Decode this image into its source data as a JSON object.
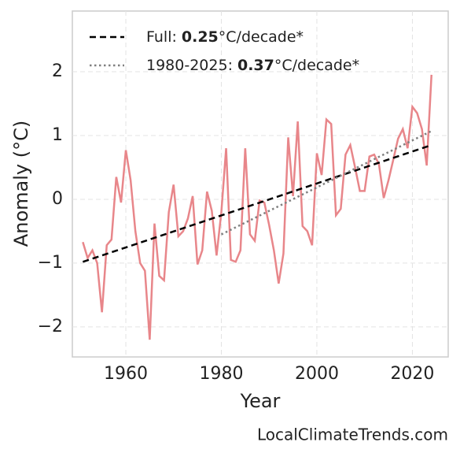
{
  "chart_data": {
    "type": "line",
    "xlabel": "Year",
    "ylabel": "Anomaly (°C)",
    "xlim": [
      1948.8,
      2027.5
    ],
    "ylim": [
      -2.47,
      2.95
    ],
    "xticks": [
      1960,
      1980,
      2000,
      2020
    ],
    "yticks": [
      {
        "value": -2,
        "label": "−2"
      },
      {
        "value": -1,
        "label": "−1"
      },
      0,
      1,
      2
    ],
    "grid": true,
    "legend": "upper left",
    "x": [
      1951,
      1952,
      1953,
      1954,
      1955,
      1956,
      1957,
      1958,
      1959,
      1960,
      1961,
      1962,
      1963,
      1964,
      1965,
      1966,
      1967,
      1968,
      1969,
      1970,
      1971,
      1972,
      1973,
      1974,
      1975,
      1976,
      1977,
      1978,
      1979,
      1980,
      1981,
      1982,
      1983,
      1984,
      1985,
      1986,
      1987,
      1988,
      1989,
      1990,
      1991,
      1992,
      1993,
      1994,
      1995,
      1996,
      1997,
      1998,
      1999,
      2000,
      2001,
      2002,
      2003,
      2004,
      2005,
      2006,
      2007,
      2008,
      2009,
      2010,
      2011,
      2012,
      2013,
      2014,
      2015,
      2016,
      2017,
      2018,
      2019,
      2020,
      2021,
      2022,
      2023,
      2024
    ],
    "series": [
      {
        "color": "#e8868a",
        "style": "solid",
        "values": [
          -0.67,
          -0.92,
          -0.8,
          -1.0,
          -1.77,
          -0.72,
          -0.63,
          0.35,
          -0.05,
          0.77,
          0.3,
          -0.5,
          -1.0,
          -1.12,
          -2.2,
          -0.38,
          -1.2,
          -1.27,
          -0.2,
          0.23,
          -0.58,
          -0.5,
          -0.3,
          0.05,
          -1.02,
          -0.8,
          0.12,
          -0.18,
          -0.88,
          -0.2,
          0.8,
          -0.95,
          -0.98,
          -0.8,
          0.8,
          -0.55,
          -0.65,
          -0.02,
          -0.05,
          -0.4,
          -0.8,
          -1.32,
          -0.85,
          0.97,
          0.05,
          1.22,
          -0.42,
          -0.5,
          -0.72,
          0.72,
          0.38,
          1.25,
          1.18,
          -0.25,
          -0.15,
          0.7,
          0.85,
          0.5,
          0.13,
          0.13,
          0.67,
          0.7,
          0.55,
          0.02,
          0.3,
          0.62,
          0.95,
          1.1,
          0.8,
          1.45,
          1.35,
          1.1,
          0.53,
          1.95
        ]
      },
      {
        "name": "Full:",
        "rate": 0.25,
        "unit": "°C/decade*",
        "color": "#000000",
        "style": "dashed",
        "x": [
          1951,
          2024
        ],
        "values": [
          -0.98,
          0.85
        ]
      },
      {
        "name": "1980-2025:",
        "rate": 0.37,
        "unit": "°C/decade*",
        "color": "#808080",
        "style": "dotted",
        "x": [
          1980,
          2024
        ],
        "values": [
          -0.55,
          1.07
        ]
      }
    ]
  },
  "footer": "LocalClimateTrends.com"
}
